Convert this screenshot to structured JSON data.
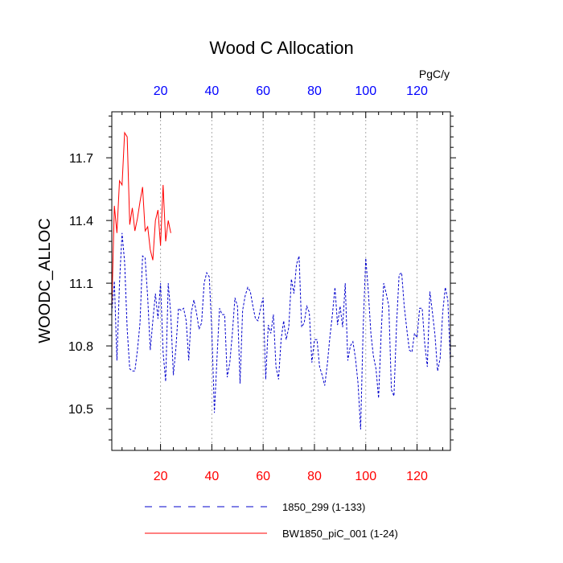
{
  "chart_data": {
    "type": "line",
    "title": "Wood C Allocation",
    "ylabel": "WOODC_ALLOC",
    "units": "PgC/y",
    "xlim": [
      1,
      133
    ],
    "ylim": [
      10.3,
      11.92
    ],
    "x_ticks": [
      20,
      40,
      60,
      80,
      100,
      120
    ],
    "y_ticks": [
      10.5,
      10.8,
      11.1,
      11.4,
      11.7
    ],
    "y_tick_labels": [
      "10.5",
      "10.8",
      "11.1",
      "11.4",
      "11.7"
    ],
    "top_tick_color": "#0000ff",
    "bottom_tick_color": "#ff0000",
    "grid": "vertical dotted at major x ticks",
    "legend_position": "bottom",
    "series": [
      {
        "name": "1850_299 (1-133)",
        "color": "#0000cc",
        "style": "dashed",
        "x_start": 1,
        "values": [
          10.96,
          11.11,
          10.73,
          11.1,
          11.34,
          11.2,
          10.88,
          10.69,
          10.68,
          10.68,
          10.78,
          10.91,
          11.23,
          11.22,
          11.03,
          10.78,
          10.92,
          11.05,
          10.93,
          11.1,
          10.77,
          10.63,
          11.1,
          10.95,
          10.66,
          10.79,
          10.98,
          10.97,
          10.98,
          10.92,
          10.73,
          10.96,
          11.02,
          10.96,
          10.88,
          10.91,
          11.1,
          11.15,
          11.13,
          10.87,
          10.48,
          10.74,
          10.98,
          10.95,
          10.95,
          10.65,
          10.72,
          10.86,
          11.03,
          10.99,
          10.62,
          10.97,
          11.04,
          11.08,
          11.06,
          10.99,
          10.93,
          10.92,
          10.98,
          11.03,
          10.64,
          10.9,
          10.86,
          10.95,
          10.7,
          10.64,
          10.83,
          10.92,
          10.83,
          10.89,
          11.12,
          11.05,
          11.19,
          11.23,
          10.89,
          10.91,
          10.99,
          10.96,
          10.72,
          10.83,
          10.83,
          10.7,
          10.66,
          10.61,
          10.71,
          10.84,
          10.95,
          11.08,
          10.9,
          10.99,
          10.89,
          11.1,
          10.73,
          10.8,
          10.82,
          10.74,
          10.62,
          10.4,
          10.89,
          11.22,
          11.06,
          10.86,
          10.75,
          10.69,
          10.55,
          10.86,
          11.1,
          11.05,
          10.99,
          10.59,
          10.56,
          10.9,
          11.14,
          11.15,
          10.99,
          10.88,
          10.78,
          10.77,
          10.86,
          10.84,
          10.98,
          10.98,
          10.81,
          10.7,
          11.06,
          10.96,
          10.85,
          10.68,
          10.74,
          10.96,
          11.08,
          11.02,
          10.72
        ]
      },
      {
        "name": "BW1850_piC_001 (1-24)",
        "color": "#ff0000",
        "style": "solid",
        "x_start": 1,
        "values": [
          10.98,
          11.47,
          11.34,
          11.59,
          11.57,
          11.82,
          11.8,
          11.38,
          11.46,
          11.35,
          11.41,
          11.49,
          11.56,
          11.35,
          11.37,
          11.26,
          11.21,
          11.4,
          11.45,
          11.28,
          11.57,
          11.3,
          11.4,
          11.34
        ]
      }
    ]
  }
}
